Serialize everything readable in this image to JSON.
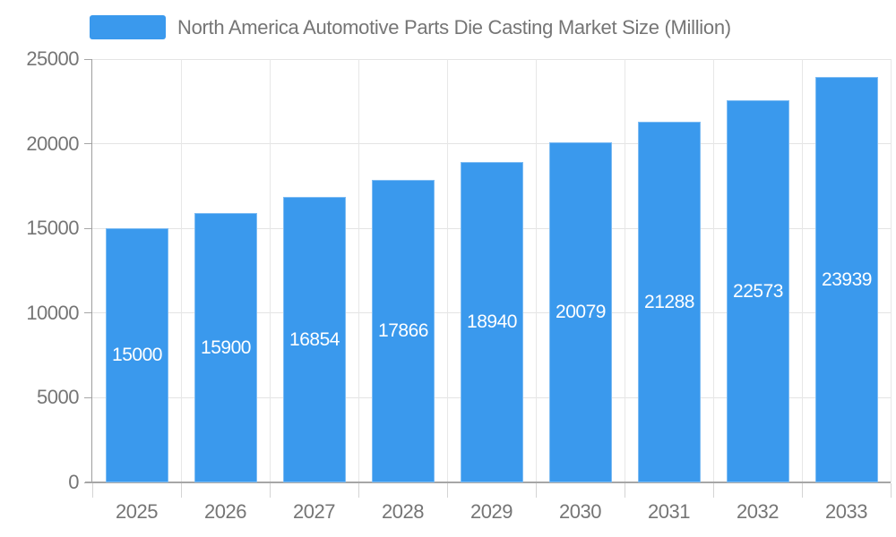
{
  "legend": {
    "label": "North America Automotive Parts Die Casting Market Size (Million)"
  },
  "chart_data": {
    "type": "bar",
    "title": "North America Automotive Parts Die Casting Market Size (Million)",
    "categories": [
      "2025",
      "2026",
      "2027",
      "2028",
      "2029",
      "2030",
      "2031",
      "2032",
      "2033"
    ],
    "values": [
      15000,
      15900,
      16854,
      17866,
      18940,
      20079,
      21288,
      22573,
      23939
    ],
    "series": [
      {
        "name": "North America Automotive Parts Die Casting Market Size (Million)",
        "values": [
          15000,
          15900,
          16854,
          17866,
          18940,
          20079,
          21288,
          22573,
          23939
        ]
      }
    ],
    "xlabel": "",
    "ylabel": "",
    "ylim": [
      0,
      25000
    ],
    "yticks": [
      0,
      5000,
      10000,
      15000,
      20000,
      25000
    ],
    "grid": true,
    "legend_position": "top",
    "bar_value_labels": "inside-center",
    "colors": {
      "bar": "#3a99ed",
      "grid": "#e4e4e4",
      "axis": "#a6a6a6",
      "tick_text": "#757575",
      "bar_label_text": "#ffffff",
      "background": "#ffffff"
    }
  }
}
